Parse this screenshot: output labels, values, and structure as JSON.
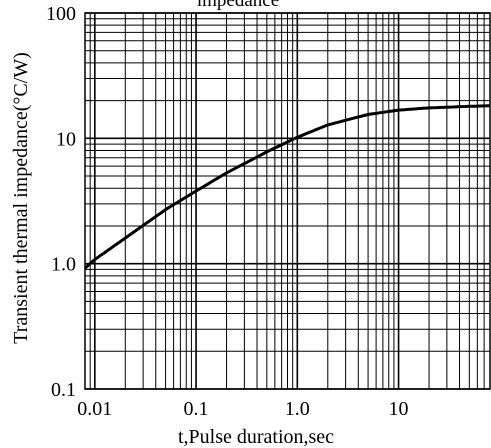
{
  "chart_data": {
    "type": "line",
    "title": "impedance",
    "xlabel": "t,Pulse duration,sec",
    "ylabel": "Transient thermal impedance(°C/W)",
    "x_scale": "log",
    "y_scale": "log",
    "xlim": [
      0.008,
      80
    ],
    "ylim": [
      0.1,
      100
    ],
    "x_ticks": [
      {
        "value": 0.01,
        "label": "0.01"
      },
      {
        "value": 0.1,
        "label": "0.1"
      },
      {
        "value": 1,
        "label": "1.0"
      },
      {
        "value": 10,
        "label": "10"
      }
    ],
    "y_ticks": [
      {
        "value": 0.1,
        "label": "0.1"
      },
      {
        "value": 1,
        "label": "1.0"
      },
      {
        "value": 10,
        "label": "10"
      },
      {
        "value": 100,
        "label": "100"
      }
    ],
    "grid": true,
    "series": [
      {
        "x": [
          0.008,
          0.01,
          0.02,
          0.05,
          0.1,
          0.2,
          0.5,
          1,
          2,
          5,
          10,
          20,
          50,
          80
        ],
        "y": [
          0.92,
          1.08,
          1.6,
          2.7,
          3.8,
          5.3,
          7.8,
          10.2,
          12.8,
          15.5,
          16.8,
          17.5,
          18.0,
          18.2
        ]
      }
    ]
  }
}
